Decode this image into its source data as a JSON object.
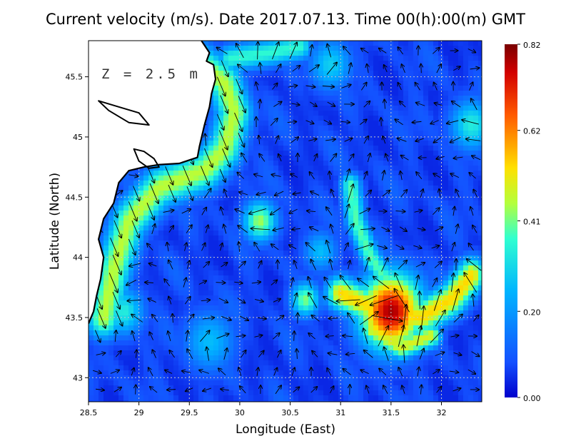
{
  "chart_data": {
    "type": "heatmap",
    "title": "Current velocity (m/s). Date 2017.07.13. Time 00(h):00(m) GMT",
    "annotation": "Z = 2.5 m",
    "xlabel": "Longitude (East)",
    "ylabel": "Latitude (North)",
    "xlim": [
      28.5,
      32.4
    ],
    "ylim": [
      42.8,
      45.8
    ],
    "x_ticks": [
      28.5,
      29,
      29.5,
      30,
      30.5,
      31,
      31.5,
      32
    ],
    "x_tick_labels": [
      "28.5",
      "29",
      "29.5",
      "30",
      "30.5",
      "31",
      "31.5",
      "32"
    ],
    "y_ticks": [
      43,
      43.5,
      44,
      44.5,
      45,
      45.5
    ],
    "y_tick_labels": [
      "43",
      "43.5",
      "44",
      "44.5",
      "45",
      "45.5"
    ],
    "grid": true,
    "colorbar": {
      "range": [
        0.0,
        0.82
      ],
      "tick_values": [
        0.0,
        0.2,
        0.41,
        0.62,
        0.82
      ],
      "tick_labels": [
        "0.00",
        "0.20",
        "0.41",
        "0.62",
        "0.82"
      ],
      "colormap": "jet"
    },
    "colors": {
      "land": "#ffffff",
      "coast": "#000000",
      "sea_low": "#1450ff",
      "sea_high": "#8b0000"
    },
    "features": [
      {
        "kind": "coastal_jet",
        "path": [
          [
            29.6,
            45.6
          ],
          [
            29.85,
            45.45
          ],
          [
            29.95,
            45.2
          ],
          [
            29.85,
            44.9
          ],
          [
            29.65,
            44.72
          ],
          [
            29.2,
            44.58
          ],
          [
            28.9,
            44.3
          ],
          [
            28.75,
            43.9
          ],
          [
            28.65,
            43.5
          ]
        ],
        "speed": 0.42,
        "width": 0.12
      },
      {
        "kind": "jet_branch",
        "path": [
          [
            29.9,
            45.65
          ],
          [
            30.3,
            45.7
          ],
          [
            30.6,
            45.75
          ]
        ],
        "speed": 0.32,
        "width": 0.08
      },
      {
        "kind": "eddy",
        "center": [
          31.5,
          43.55
        ],
        "speed": 0.75,
        "radius": 0.22
      },
      {
        "kind": "eddy_arm",
        "path": [
          [
            31.0,
            43.7
          ],
          [
            31.4,
            43.55
          ],
          [
            31.8,
            43.5
          ],
          [
            32.1,
            43.65
          ],
          [
            32.3,
            43.85
          ]
        ],
        "speed": 0.5,
        "width": 0.1
      },
      {
        "kind": "filament",
        "path": [
          [
            31.1,
            44.6
          ],
          [
            31.15,
            44.3
          ],
          [
            31.3,
            44.0
          ],
          [
            31.5,
            43.75
          ]
        ],
        "speed": 0.35,
        "width": 0.07
      },
      {
        "kind": "filament",
        "path": [
          [
            31.3,
            43.4
          ],
          [
            31.6,
            43.25
          ],
          [
            31.9,
            43.35
          ]
        ],
        "speed": 0.45,
        "width": 0.07
      },
      {
        "kind": "patch",
        "center": [
          30.2,
          44.3
        ],
        "speed": 0.4,
        "radius": 0.12
      },
      {
        "kind": "patch",
        "center": [
          30.65,
          43.65
        ],
        "speed": 0.38,
        "radius": 0.1
      },
      {
        "kind": "patch",
        "center": [
          28.85,
          43.55
        ],
        "speed": 0.3,
        "radius": 0.14
      },
      {
        "kind": "patch",
        "center": [
          32.3,
          45.1
        ],
        "speed": 0.3,
        "radius": 0.15
      },
      {
        "kind": "patch",
        "center": [
          30.9,
          45.6
        ],
        "speed": 0.25,
        "radius": 0.15
      },
      {
        "kind": "patch",
        "center": [
          29.7,
          43.3
        ],
        "speed": 0.22,
        "radius": 0.18
      },
      {
        "kind": "patch",
        "center": [
          30.8,
          44.05
        ],
        "speed": 0.22,
        "radius": 0.12
      }
    ],
    "coastline": [
      [
        29.62,
        45.8
      ],
      [
        29.7,
        45.7
      ],
      [
        29.67,
        45.63
      ],
      [
        29.74,
        45.6
      ],
      [
        29.76,
        45.48
      ],
      [
        29.72,
        45.36
      ],
      [
        29.7,
        45.25
      ],
      [
        29.65,
        45.1
      ],
      [
        29.6,
        44.92
      ],
      [
        29.58,
        44.83
      ],
      [
        29.4,
        44.78
      ],
      [
        29.2,
        44.77
      ],
      [
        29.05,
        44.75
      ],
      [
        28.9,
        44.72
      ],
      [
        28.8,
        44.62
      ],
      [
        28.75,
        44.45
      ],
      [
        28.65,
        44.32
      ],
      [
        28.6,
        44.15
      ],
      [
        28.65,
        44.0
      ],
      [
        28.62,
        43.82
      ],
      [
        28.58,
        43.68
      ],
      [
        28.55,
        43.55
      ],
      [
        28.5,
        43.45
      ]
    ],
    "lagoons": [
      [
        [
          28.95,
          44.9
        ],
        [
          29.05,
          44.88
        ],
        [
          29.15,
          44.82
        ],
        [
          29.2,
          44.75
        ],
        [
          29.1,
          44.74
        ],
        [
          29.0,
          44.8
        ],
        [
          28.95,
          44.9
        ]
      ],
      [
        [
          28.6,
          45.3
        ],
        [
          28.8,
          45.25
        ],
        [
          29.0,
          45.2
        ],
        [
          29.1,
          45.1
        ],
        [
          28.9,
          45.12
        ],
        [
          28.7,
          45.22
        ],
        [
          28.6,
          45.3
        ]
      ]
    ]
  }
}
